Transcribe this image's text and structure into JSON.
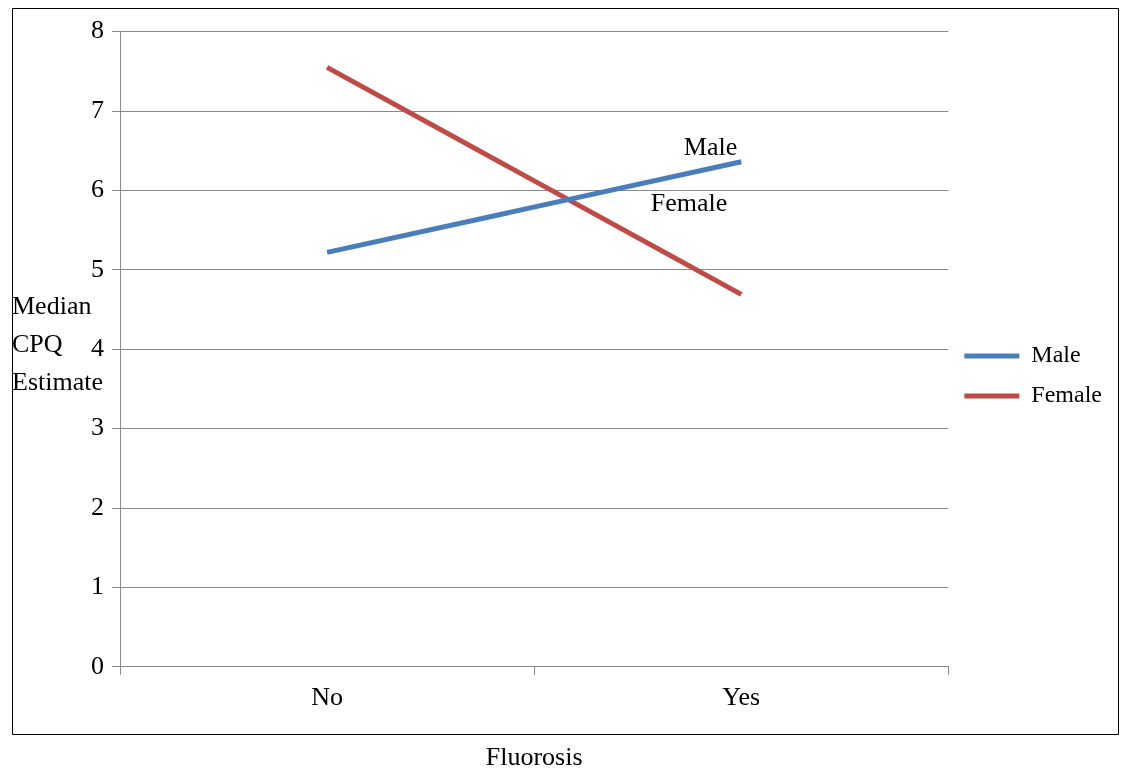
{
  "chart_data": {
    "type": "line",
    "xlabel": "Fluorosis",
    "ylabel": "Median CPQ Estimate",
    "categories": [
      "No",
      "Yes"
    ],
    "series": [
      {
        "name": "Male",
        "color": "#4a7ebb",
        "values": [
          5.22,
          6.36
        ]
      },
      {
        "name": "Female",
        "color": "#be4b48",
        "values": [
          7.55,
          4.69
        ]
      }
    ],
    "ylim": [
      0,
      8
    ],
    "yticks": [
      0,
      1,
      2,
      3,
      4,
      5,
      6,
      7,
      8
    ],
    "grid": "y",
    "legend": "right",
    "marker": "none",
    "line_style": "solid"
  }
}
